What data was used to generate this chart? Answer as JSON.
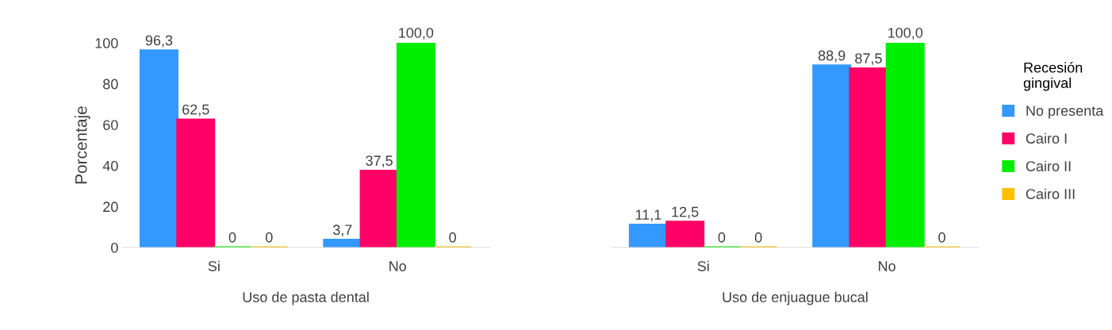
{
  "chart_data": [
    {
      "type": "bar",
      "ylabel": "Porcentaje",
      "xlabel": "Uso de pasta dental",
      "categories": [
        "Si",
        "No"
      ],
      "ylim": [
        0,
        100
      ],
      "yticks": [
        0,
        20,
        40,
        60,
        80,
        100
      ],
      "tick_labels": "xy",
      "legend": "right",
      "legend_title": "Recesión\ngingival",
      "series": [
        {
          "name": "No presenta",
          "color": "#3399ff",
          "values": [
            96.3,
            3.7
          ],
          "value_labels": [
            "96,3",
            "3,7"
          ]
        },
        {
          "name": "Cairo I",
          "color": "#ff0066",
          "values": [
            62.5,
            37.5
          ],
          "value_labels": [
            "62,5",
            "37,5"
          ]
        },
        {
          "name": "Cairo II",
          "color": "#00ee00",
          "values": [
            0,
            100
          ],
          "value_labels": [
            "0",
            "100,0"
          ]
        },
        {
          "name": "Cairo III",
          "color": "#ffc000",
          "values": [
            0,
            0
          ],
          "value_labels": [
            "0",
            "0"
          ]
        }
      ]
    },
    {
      "type": "bar",
      "xlabel": "Uso de enjuague bucal",
      "categories": [
        "Si",
        "No"
      ],
      "ylim": [
        0,
        100
      ],
      "tick_labels": "x",
      "series": [
        {
          "color": "#3399ff",
          "values": [
            11.1,
            88.9
          ],
          "value_labels": [
            "11,1",
            "88,9"
          ]
        },
        {
          "color": "#ff0066",
          "values": [
            12.5,
            87.5
          ],
          "value_labels": [
            "12,5",
            "87,5"
          ]
        },
        {
          "color": "#00ee00",
          "values": [
            0,
            100
          ],
          "value_labels": [
            "0",
            "100,0"
          ]
        },
        {
          "color": "#ffc000",
          "values": [
            0,
            0
          ],
          "value_labels": [
            "0",
            "0"
          ]
        }
      ]
    }
  ]
}
